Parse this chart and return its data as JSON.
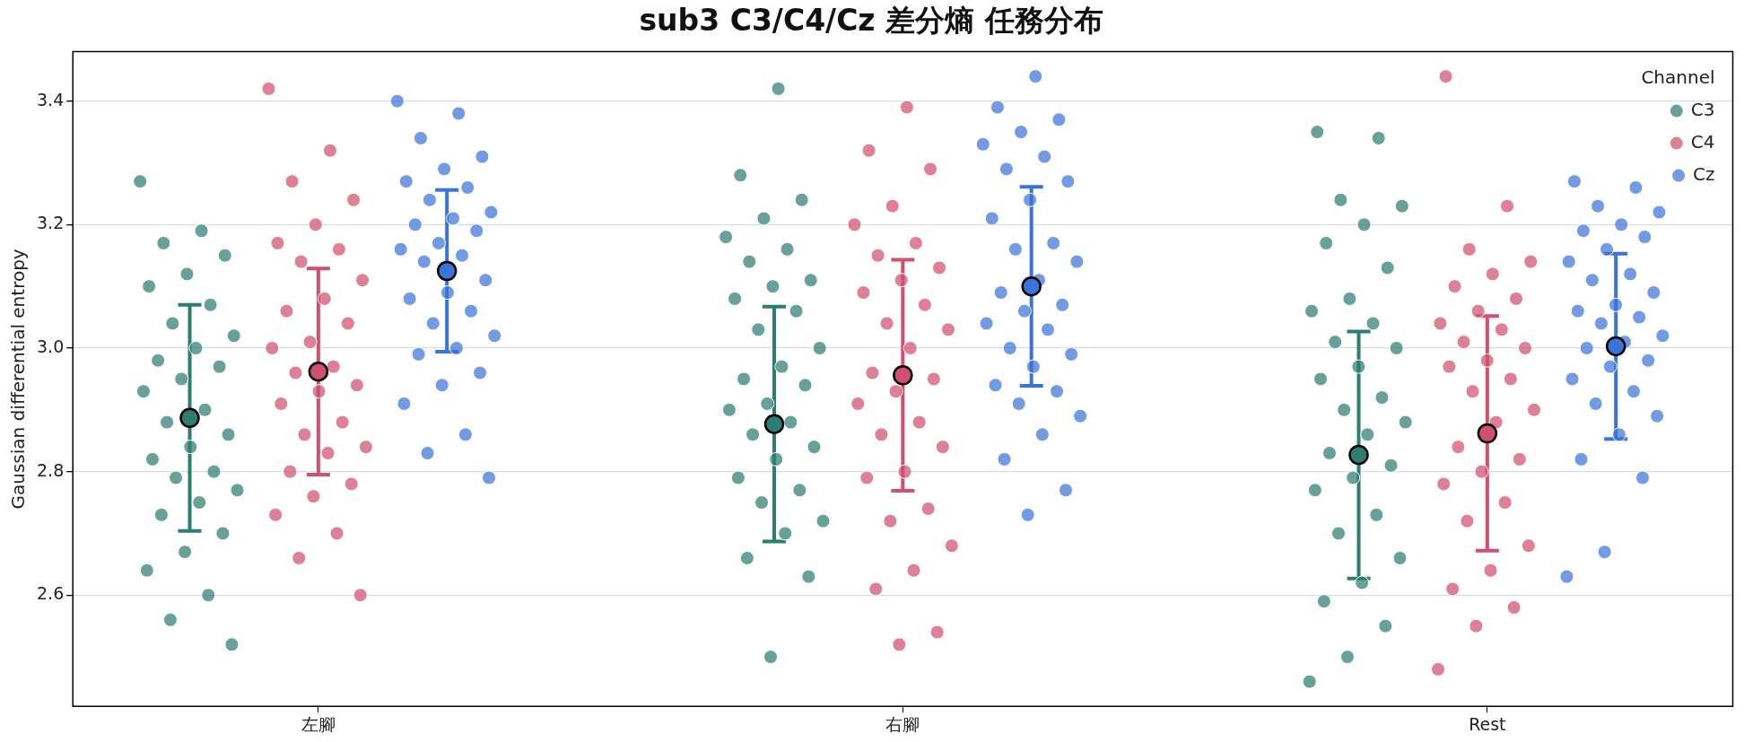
{
  "chart_data": {
    "type": "scatter",
    "title": "sub3 C3/C4/Cz 差分熵 任務分布",
    "ylabel": "Gaussian differential entropy",
    "legend_title": "Channel",
    "legend": "top right",
    "grid": "y",
    "marker": "circle",
    "categories": [
      "左腳",
      "右腳",
      "Rest"
    ],
    "ylim": [
      2.42,
      3.48
    ],
    "yticks": [
      2.6,
      2.8,
      {
        "value": 3,
        "label": "3.0"
      },
      3.2,
      3.4
    ],
    "series": [
      {
        "name": "C3",
        "color": "#2e7d72",
        "type": "scatter",
        "x": [
          "左腳",
          "左腳",
          "左腳",
          "左腳",
          "左腳",
          "左腳",
          "左腳",
          "左腳",
          "左腳",
          "左腳",
          "左腳",
          "左腳",
          "左腳",
          "左腳",
          "左腳",
          "左腳",
          "左腳",
          "左腳",
          "左腳",
          "左腳",
          "左腳",
          "左腳",
          "左腳",
          "左腳",
          "左腳",
          "左腳",
          "左腳",
          "左腳",
          "左腳",
          "左腳",
          "右腳",
          "右腳",
          "右腳",
          "右腳",
          "右腳",
          "右腳",
          "右腳",
          "右腳",
          "右腳",
          "右腳",
          "右腳",
          "右腳",
          "右腳",
          "右腳",
          "右腳",
          "右腳",
          "右腳",
          "右腳",
          "右腳",
          "右腳",
          "右腳",
          "右腳",
          "右腳",
          "右腳",
          "右腳",
          "右腳",
          "右腳",
          "右腳",
          "右腳",
          "右腳",
          "Rest",
          "Rest",
          "Rest",
          "Rest",
          "Rest",
          "Rest",
          "Rest",
          "Rest",
          "Rest",
          "Rest",
          "Rest",
          "Rest",
          "Rest",
          "Rest",
          "Rest",
          "Rest",
          "Rest",
          "Rest",
          "Rest",
          "Rest",
          "Rest",
          "Rest",
          "Rest",
          "Rest",
          "Rest",
          "Rest",
          "Rest",
          "Rest",
          "Rest",
          "Rest"
        ],
        "values": [
          3.27,
          3.19,
          3.17,
          3.15,
          3.12,
          3.1,
          3.07,
          3.04,
          3.02,
          3.0,
          2.98,
          2.97,
          2.95,
          2.93,
          2.9,
          2.88,
          2.86,
          2.84,
          2.82,
          2.8,
          2.79,
          2.77,
          2.75,
          2.73,
          2.7,
          2.67,
          2.64,
          2.6,
          2.56,
          2.52,
          3.42,
          3.28,
          3.24,
          3.21,
          3.18,
          3.16,
          3.14,
          3.11,
          3.1,
          3.08,
          3.06,
          3.03,
          3.0,
          2.97,
          2.95,
          2.94,
          2.91,
          2.9,
          2.88,
          2.86,
          2.84,
          2.82,
          2.79,
          2.77,
          2.75,
          2.72,
          2.7,
          2.66,
          2.63,
          2.5,
          3.35,
          3.34,
          3.24,
          3.23,
          3.2,
          3.17,
          3.13,
          3.08,
          3.06,
          3.04,
          3.01,
          3.0,
          2.97,
          2.95,
          2.92,
          2.9,
          2.88,
          2.86,
          2.83,
          2.81,
          2.79,
          2.77,
          2.73,
          2.7,
          2.66,
          2.62,
          2.59,
          2.55,
          2.5,
          2.46
        ]
      },
      {
        "color": "#2e7d72",
        "type": "scatter",
        "x": [
          "左腳",
          "右腳",
          "Rest"
        ],
        "values": [
          2.887,
          2.877,
          2.827
        ],
        "errors": [
          0.183,
          0.19,
          0.2
        ]
      },
      {
        "name": "C4",
        "color": "#d1506f",
        "type": "scatter",
        "x": [
          "左腳",
          "左腳",
          "左腳",
          "左腳",
          "左腳",
          "左腳",
          "左腳",
          "左腳",
          "左腳",
          "左腳",
          "左腳",
          "左腳",
          "左腳",
          "左腳",
          "左腳",
          "左腳",
          "左腳",
          "左腳",
          "左腳",
          "左腳",
          "左腳",
          "左腳",
          "左腳",
          "左腳",
          "左腳",
          "左腳",
          "左腳",
          "左腳",
          "左腳",
          "左腳",
          "右腳",
          "右腳",
          "右腳",
          "右腳",
          "右腳",
          "右腳",
          "右腳",
          "右腳",
          "右腳",
          "右腳",
          "右腳",
          "右腳",
          "右腳",
          "右腳",
          "右腳",
          "右腳",
          "右腳",
          "右腳",
          "右腳",
          "右腳",
          "右腳",
          "右腳",
          "右腳",
          "右腳",
          "右腳",
          "右腳",
          "右腳",
          "右腳",
          "右腳",
          "右腳",
          "Rest",
          "Rest",
          "Rest",
          "Rest",
          "Rest",
          "Rest",
          "Rest",
          "Rest",
          "Rest",
          "Rest",
          "Rest",
          "Rest",
          "Rest",
          "Rest",
          "Rest",
          "Rest",
          "Rest",
          "Rest",
          "Rest",
          "Rest",
          "Rest",
          "Rest",
          "Rest",
          "Rest",
          "Rest",
          "Rest",
          "Rest",
          "Rest",
          "Rest",
          "Rest"
        ],
        "values": [
          3.42,
          3.32,
          3.27,
          3.24,
          3.2,
          3.17,
          3.16,
          3.14,
          3.11,
          3.08,
          3.06,
          3.04,
          3.01,
          3.0,
          2.97,
          2.96,
          2.94,
          2.93,
          2.91,
          2.88,
          2.86,
          2.84,
          2.83,
          2.8,
          2.78,
          2.76,
          2.73,
          2.7,
          2.66,
          2.6,
          3.39,
          3.32,
          3.29,
          3.23,
          3.2,
          3.17,
          3.15,
          3.13,
          3.11,
          3.09,
          3.07,
          3.04,
          3.03,
          3.0,
          2.96,
          2.95,
          2.93,
          2.91,
          2.88,
          2.86,
          2.84,
          2.8,
          2.79,
          2.74,
          2.72,
          2.68,
          2.64,
          2.61,
          2.54,
          2.52,
          3.44,
          3.23,
          3.16,
          3.14,
          3.12,
          3.1,
          3.08,
          3.06,
          3.04,
          3.03,
          3.01,
          3.0,
          2.98,
          2.97,
          2.95,
          2.93,
          2.9,
          2.88,
          2.84,
          2.82,
          2.8,
          2.78,
          2.75,
          2.72,
          2.68,
          2.64,
          2.61,
          2.58,
          2.55,
          2.48
        ]
      },
      {
        "color": "#d1506f",
        "type": "scatter",
        "x": [
          "左腳",
          "右腳",
          "Rest"
        ],
        "values": [
          2.962,
          2.956,
          2.862
        ],
        "errors": [
          0.167,
          0.187,
          0.19
        ]
      },
      {
        "name": "Cz",
        "color": "#3b74d8",
        "type": "scatter",
        "x": [
          "左腳",
          "左腳",
          "左腳",
          "左腳",
          "左腳",
          "左腳",
          "左腳",
          "左腳",
          "左腳",
          "左腳",
          "左腳",
          "左腳",
          "左腳",
          "左腳",
          "左腳",
          "左腳",
          "左腳",
          "左腳",
          "左腳",
          "左腳",
          "左腳",
          "左腳",
          "左腳",
          "左腳",
          "左腳",
          "左腳",
          "左腳",
          "左腳",
          "左腳",
          "左腳",
          "右腳",
          "右腳",
          "右腳",
          "右腳",
          "右腳",
          "右腳",
          "右腳",
          "右腳",
          "右腳",
          "右腳",
          "右腳",
          "右腳",
          "右腳",
          "右腳",
          "右腳",
          "右腳",
          "右腳",
          "右腳",
          "右腳",
          "右腳",
          "右腳",
          "右腳",
          "右腳",
          "右腳",
          "右腳",
          "右腳",
          "右腳",
          "右腳",
          "右腳",
          "右腳",
          "Rest",
          "Rest",
          "Rest",
          "Rest",
          "Rest",
          "Rest",
          "Rest",
          "Rest",
          "Rest",
          "Rest",
          "Rest",
          "Rest",
          "Rest",
          "Rest",
          "Rest",
          "Rest",
          "Rest",
          "Rest",
          "Rest",
          "Rest",
          "Rest",
          "Rest",
          "Rest",
          "Rest",
          "Rest",
          "Rest",
          "Rest",
          "Rest",
          "Rest",
          "Rest"
        ],
        "values": [
          3.4,
          3.38,
          3.34,
          3.31,
          3.29,
          3.27,
          3.26,
          3.24,
          3.22,
          3.21,
          3.2,
          3.19,
          3.17,
          3.16,
          3.15,
          3.14,
          3.11,
          3.09,
          3.08,
          3.06,
          3.04,
          3.02,
          3.0,
          2.99,
          2.96,
          2.94,
          2.91,
          2.86,
          2.83,
          2.79,
          3.44,
          3.39,
          3.37,
          3.35,
          3.33,
          3.31,
          3.29,
          3.27,
          3.24,
          3.21,
          3.17,
          3.16,
          3.14,
          3.11,
          3.09,
          3.07,
          3.06,
          3.04,
          3.03,
          3.0,
          2.99,
          2.97,
          2.94,
          2.93,
          2.91,
          2.89,
          2.86,
          2.82,
          2.77,
          2.73,
          3.27,
          3.26,
          3.23,
          3.22,
          3.2,
          3.19,
          3.18,
          3.16,
          3.14,
          3.12,
          3.11,
          3.09,
          3.07,
          3.06,
          3.05,
          3.04,
          3.02,
          3.01,
          3.0,
          2.98,
          2.97,
          2.95,
          2.93,
          2.91,
          2.89,
          2.86,
          2.82,
          2.79,
          2.67,
          2.63
        ]
      },
      {
        "color": "#3b74d8",
        "type": "scatter",
        "x": [
          "左腳",
          "右腳",
          "Rest"
        ],
        "values": [
          3.125,
          3.1,
          3.003
        ],
        "errors": [
          0.131,
          0.161,
          0.15
        ]
      }
    ]
  }
}
